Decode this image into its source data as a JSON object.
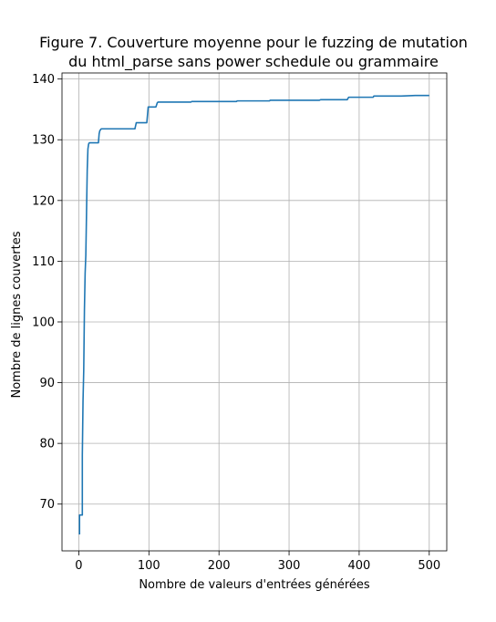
{
  "chart_data": {
    "type": "line",
    "title_lines": [
      "Figure 7. Couverture moyenne pour le fuzzing de mutation",
      "du html_parse sans power schedule ou grammaire"
    ],
    "xlabel": "Nombre de valeurs d'entrées générées",
    "ylabel": "Nombre de lignes couvertes",
    "xlim": [
      -24,
      525
    ],
    "ylim": [
      62.3,
      141
    ],
    "xticks": [
      0,
      100,
      200,
      300,
      400,
      500
    ],
    "yticks": [
      70,
      80,
      90,
      100,
      110,
      120,
      130,
      140
    ],
    "grid": true,
    "colors": {
      "line": "#1f77b4",
      "grid": "#b0b0b0",
      "axes": "#000000"
    },
    "series": [
      {
        "x": [
          1,
          1,
          2,
          5,
          5,
          6,
          7,
          8,
          9,
          10,
          11,
          12,
          13,
          14,
          15,
          16,
          18,
          20,
          22,
          25,
          28,
          29,
          30,
          32,
          34,
          40,
          50,
          60,
          70,
          80,
          82,
          84,
          86,
          90,
          95,
          97,
          99,
          100,
          101,
          105,
          110,
          112,
          113,
          120,
          140,
          160,
          161,
          200,
          225,
          226,
          270,
          272,
          273,
          310,
          343,
          345,
          380,
          383,
          385,
          420,
          421,
          460,
          480,
          500
        ],
        "y": [
          65,
          68.2,
          68.2,
          68.2,
          78,
          87,
          92,
          102,
          108,
          111,
          118,
          125,
          128.5,
          129.3,
          129.5,
          129.5,
          129.5,
          129.5,
          129.5,
          129.5,
          129.5,
          131,
          131.5,
          131.8,
          131.8,
          131.8,
          131.8,
          131.8,
          131.8,
          131.8,
          132.8,
          132.8,
          132.8,
          132.8,
          132.8,
          132.8,
          135.4,
          135.4,
          135.4,
          135.4,
          135.4,
          136.1,
          136.2,
          136.2,
          136.2,
          136.2,
          136.3,
          136.3,
          136.3,
          136.4,
          136.4,
          136.4,
          136.5,
          136.5,
          136.5,
          136.6,
          136.6,
          136.6,
          137,
          137,
          137.2,
          137.2,
          137.3,
          137.3
        ]
      }
    ]
  }
}
